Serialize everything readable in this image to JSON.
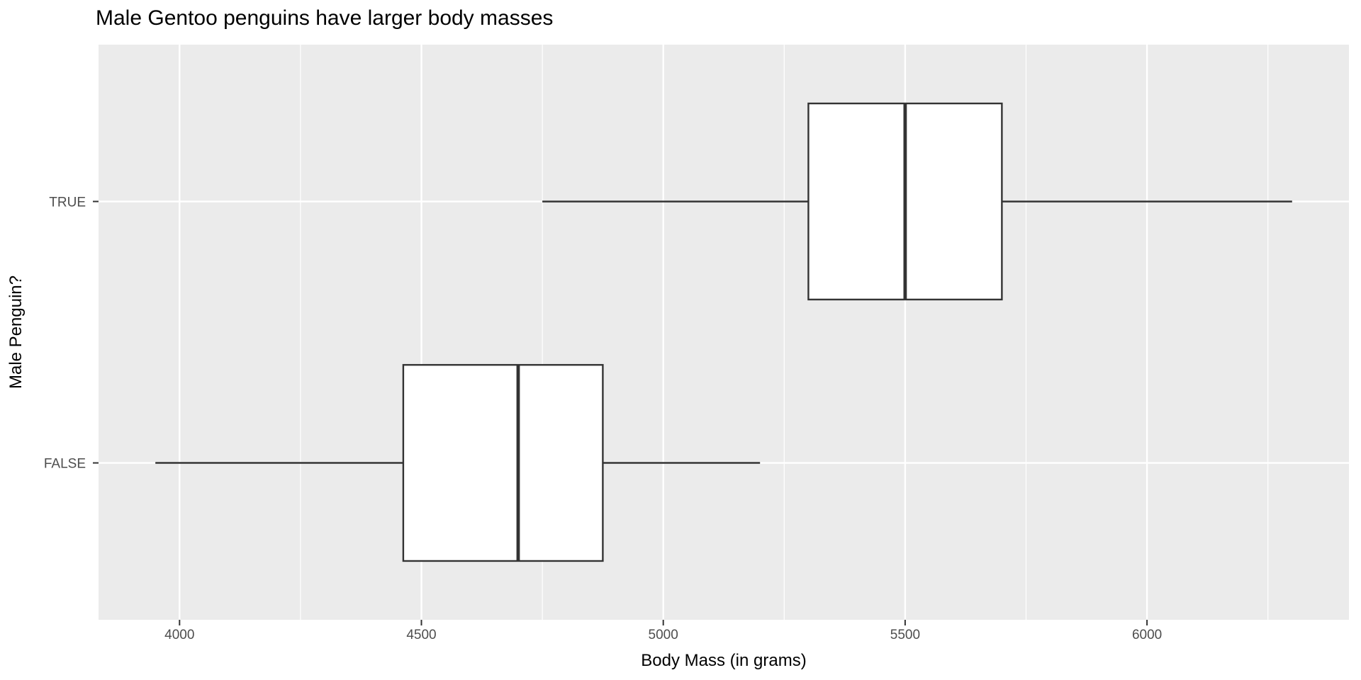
{
  "chart_data": {
    "type": "boxplot",
    "orientation": "horizontal",
    "title": "Male Gentoo penguins have larger body masses",
    "xlabel": "Body Mass (in grams)",
    "ylabel": "Male Penguin?",
    "categories": [
      "TRUE",
      "FALSE"
    ],
    "series": [
      {
        "category": "TRUE",
        "min": 4750,
        "q1": 5300,
        "median": 5500,
        "q3": 5700,
        "max": 6300,
        "outliers": []
      },
      {
        "category": "FALSE",
        "min": 3950,
        "q1": 4462.5,
        "median": 4700,
        "q3": 4875,
        "max": 5200,
        "outliers": []
      }
    ],
    "x_ticks": [
      4000,
      4500,
      5000,
      5500,
      6000
    ],
    "x_minor_ticks": [
      4250,
      4750,
      5250,
      5750,
      6250
    ],
    "xlim": [
      3832.5,
      6417.5
    ],
    "grid": true,
    "legend": false,
    "colors": {
      "panel_background": "#EBEBEB",
      "gridline": "#FFFFFF",
      "box_border": "#333333",
      "box_fill": "#FFFFFF",
      "median_line": "#333333",
      "whisker": "#333333",
      "tick_mark": "#333333",
      "tick_label": "#4D4D4D",
      "title_text": "#000000"
    }
  }
}
